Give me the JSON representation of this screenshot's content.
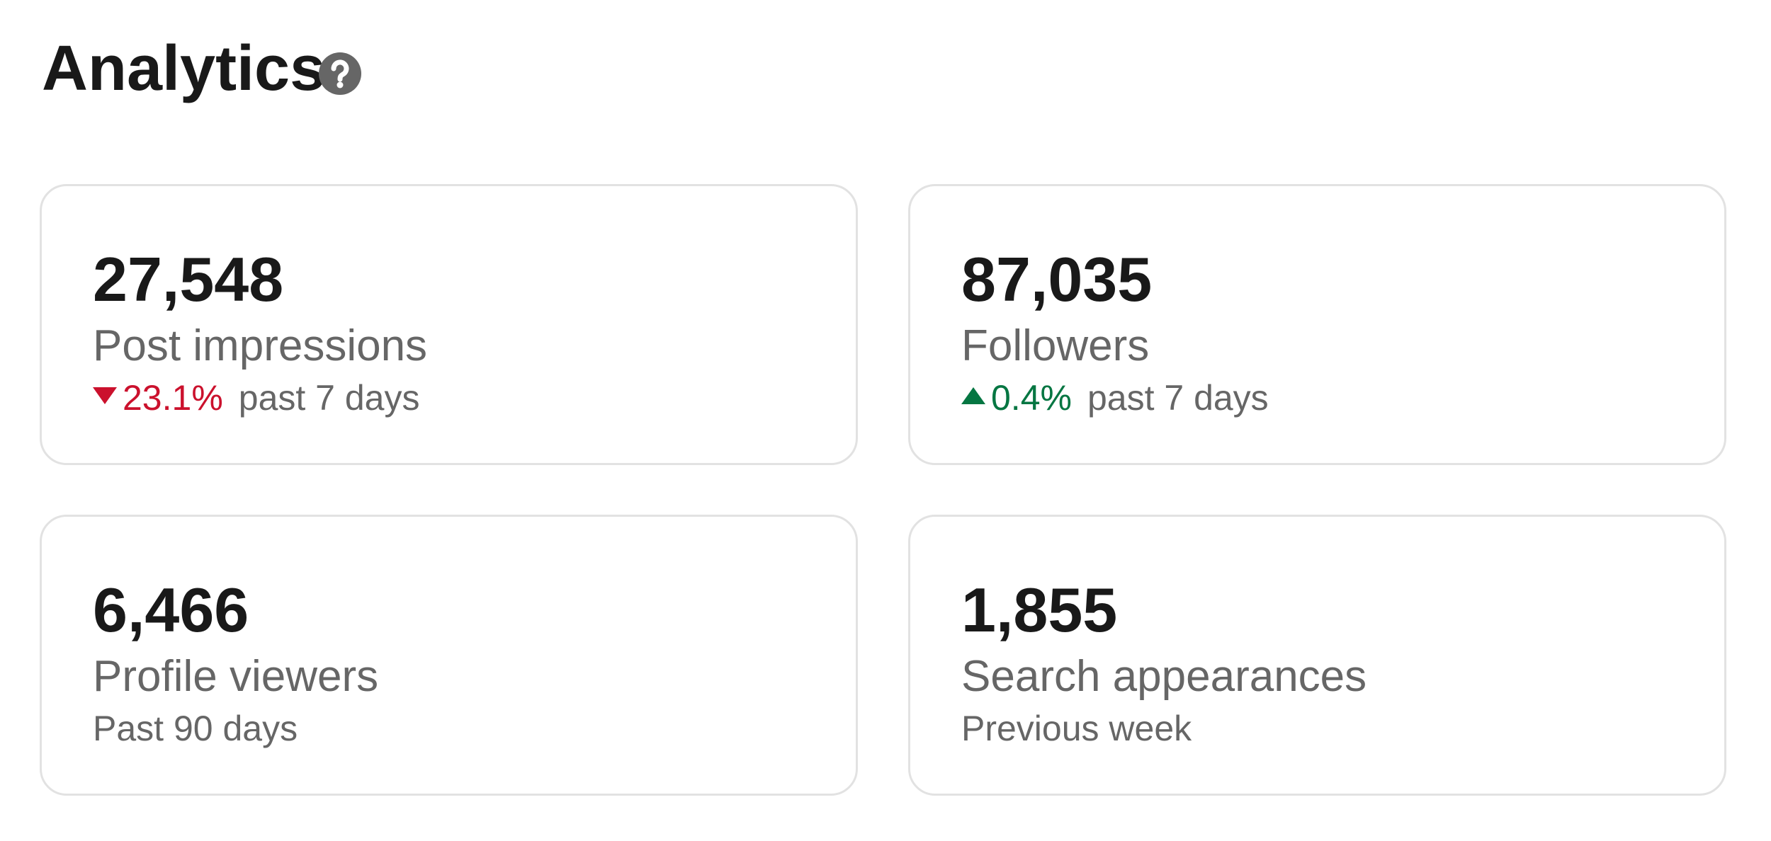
{
  "header": {
    "title": "Analytics"
  },
  "cards": [
    {
      "value": "27,548",
      "label": "Post impressions",
      "change": "23.1%",
      "period": "past 7 days"
    },
    {
      "value": "87,035",
      "label": "Followers",
      "change": "0.4%",
      "period": "past 7 days"
    },
    {
      "value": "6,466",
      "label": "Profile viewers",
      "period": "Past 90 days"
    },
    {
      "value": "1,855",
      "label": "Search appearances",
      "period": "Previous week"
    }
  ]
}
